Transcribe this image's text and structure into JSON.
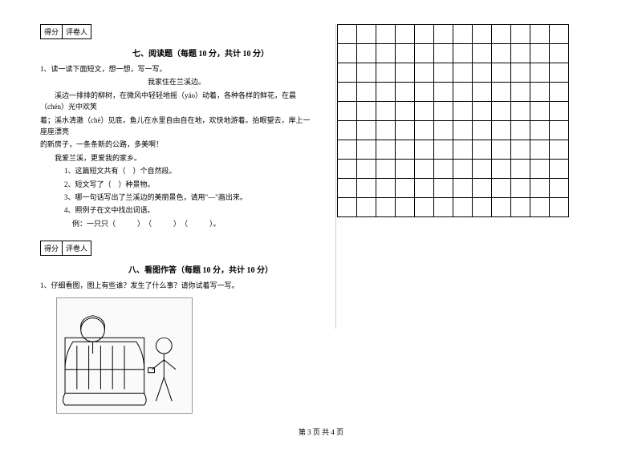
{
  "scoreBox": {
    "label1": "得分",
    "label2": "评卷人"
  },
  "section7": {
    "title": "七、阅读题（每题 10 分，共计 10 分）",
    "q1": "1、读一读下面短文，想一想，写一写。",
    "passage_title": "我家住在兰溪边。",
    "p1": "　　溪边一排排的柳树，在微风中轻轻地摇（yáo）动着，各种各样的鲜花，在晨（chén）光中欢笑",
    "p2": "着；溪水清澈（chè）见底，鱼儿在水里自由自在地，欢快地游着。抬眼望去，岸上一座座漂亮",
    "p3": "的新房子，一条条新的公路，多美啊！",
    "p4": "　　我爱兰溪，更爱我的家乡。",
    "sub1": "1、这篇短文共有（　）个自然段。",
    "sub2": "2、短文写了（　）种景物。",
    "sub3": "3、哪一句话写出了兰溪边的美丽景色，请用\"—\"画出来。",
    "sub4": "4、照例子在文中找出词语。",
    "example": "例：一只只（　　　）　（　　　）　（　　　）。"
  },
  "section8": {
    "title": "八、看图作答（每题 10 分，共计 10 分）",
    "q1": "1、仔细看图，图上有些谁？发生了什么事？请你试着写一写。"
  },
  "grid": {
    "rows": 10,
    "cols": 12
  },
  "footer": "第 3 页 共 4 页",
  "colors": {
    "text": "#000000",
    "background": "#ffffff",
    "border": "#000000",
    "divider": "#cccccc"
  }
}
